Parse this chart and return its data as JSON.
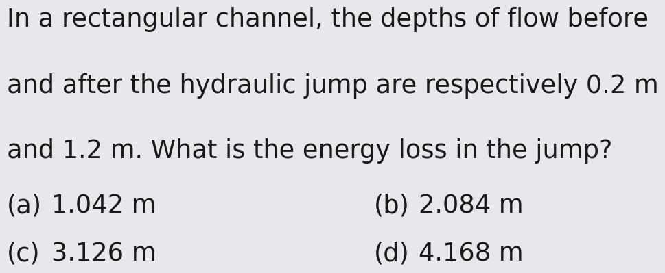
{
  "background_color": "#e8e8ec",
  "text_color": "#1a1a1a",
  "line1": "In a rectangular channel, the depths of flow before",
  "line2": "and after the hydraulic jump are respectively 0.2 m",
  "line3": "and 1.2 m. What is the energy loss in the jump?",
  "option_a_label": "(a)",
  "option_a_value": "1.042 m",
  "option_b_label": "(b)",
  "option_b_value": "2.084 m",
  "option_c_label": "(c)",
  "option_c_value": "3.126 m",
  "option_d_label": "(d)",
  "option_d_value": "4.168 m",
  "main_fontsize": 26.5,
  "option_fontsize": 26.5,
  "fig_width": 12.0,
  "fig_height": 3.9
}
